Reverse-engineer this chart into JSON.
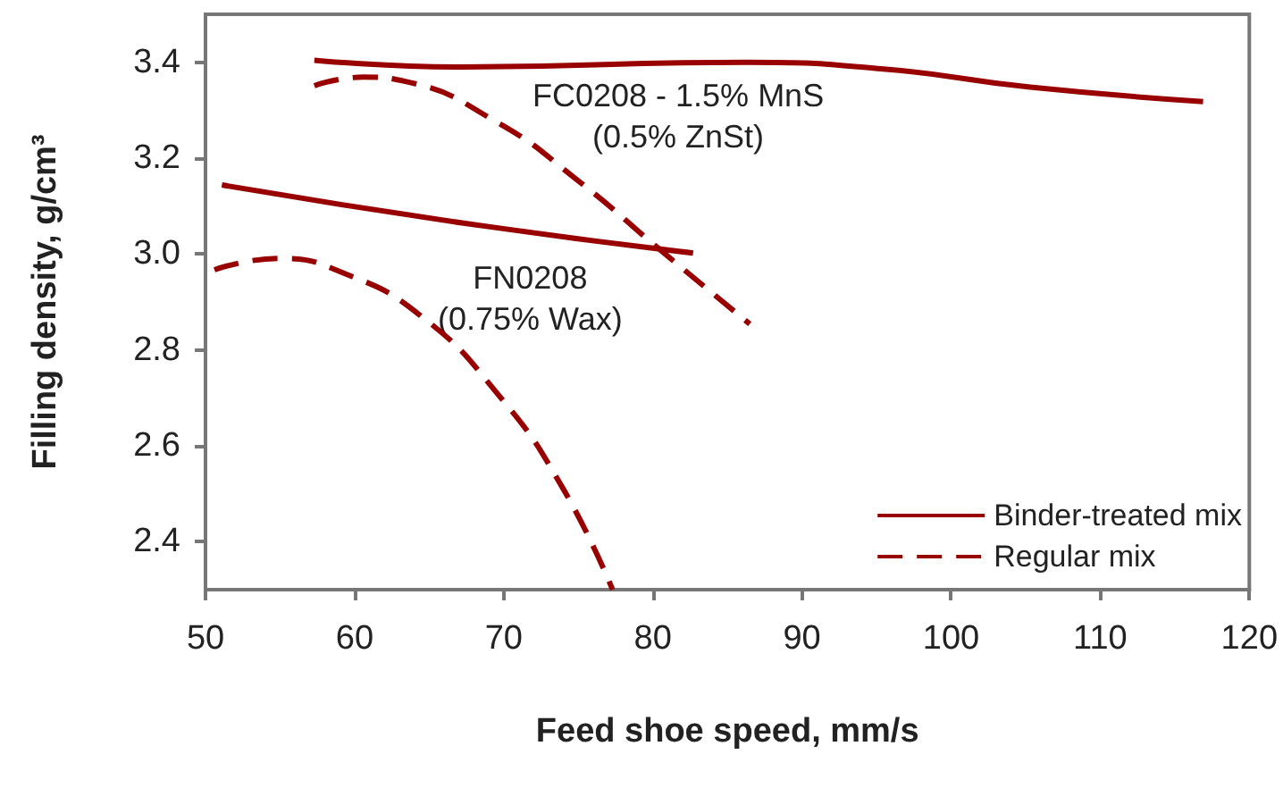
{
  "chart_data": {
    "type": "line",
    "xlabel": "Feed shoe speed, mm/s",
    "ylabel": "Filling density, g/cm³",
    "xlim": [
      50,
      120
    ],
    "xticks": [
      50,
      60,
      70,
      80,
      90,
      100,
      110,
      120
    ],
    "ylim": [
      2.3,
      3.5
    ],
    "yticks": [
      2.4,
      2.6,
      2.8,
      {
        "value": 3,
        "label": "3.0"
      },
      3.2,
      3.4
    ],
    "grid": false,
    "legend": "bottom right",
    "marker": "none",
    "annotations": [
      "FC0208 - 1.5% MnS\n(0.5% ZnSt)",
      "FN0208\n(0.75% Wax)"
    ],
    "series": [
      {
        "name": "Binder-treated mix",
        "color": "#990000",
        "line_style": "solid",
        "x": [
          57.3,
          67.2,
          86.3,
          95.8,
          105.3,
          116.9
        ],
        "values": [
          3.404,
          3.39,
          3.4,
          3.385,
          3.348,
          3.318
        ]
      },
      {
        "name": "Regular mix",
        "color": "#990000",
        "line_style": "dashed",
        "x": [
          57.3,
          60.6,
          63.4,
          69.6,
          74.9,
          80.6,
          86.5
        ],
        "values": [
          3.351,
          3.369,
          3.36,
          3.274,
          3.155,
          3.006,
          2.854
        ]
      },
      {
        "color": "#990000",
        "line_style": "solid",
        "x": [
          51.1,
          67.2,
          82.7
        ],
        "values": [
          3.144,
          3.065,
          3.002
        ]
      },
      {
        "color": "#990000",
        "line_style": "dashed",
        "x": [
          50.6,
          54.9,
          59.2,
          64.4,
          69.6,
          73.9,
          77.3
        ],
        "values": [
          2.967,
          2.991,
          2.961,
          2.872,
          2.708,
          2.515,
          2.3
        ]
      }
    ]
  }
}
